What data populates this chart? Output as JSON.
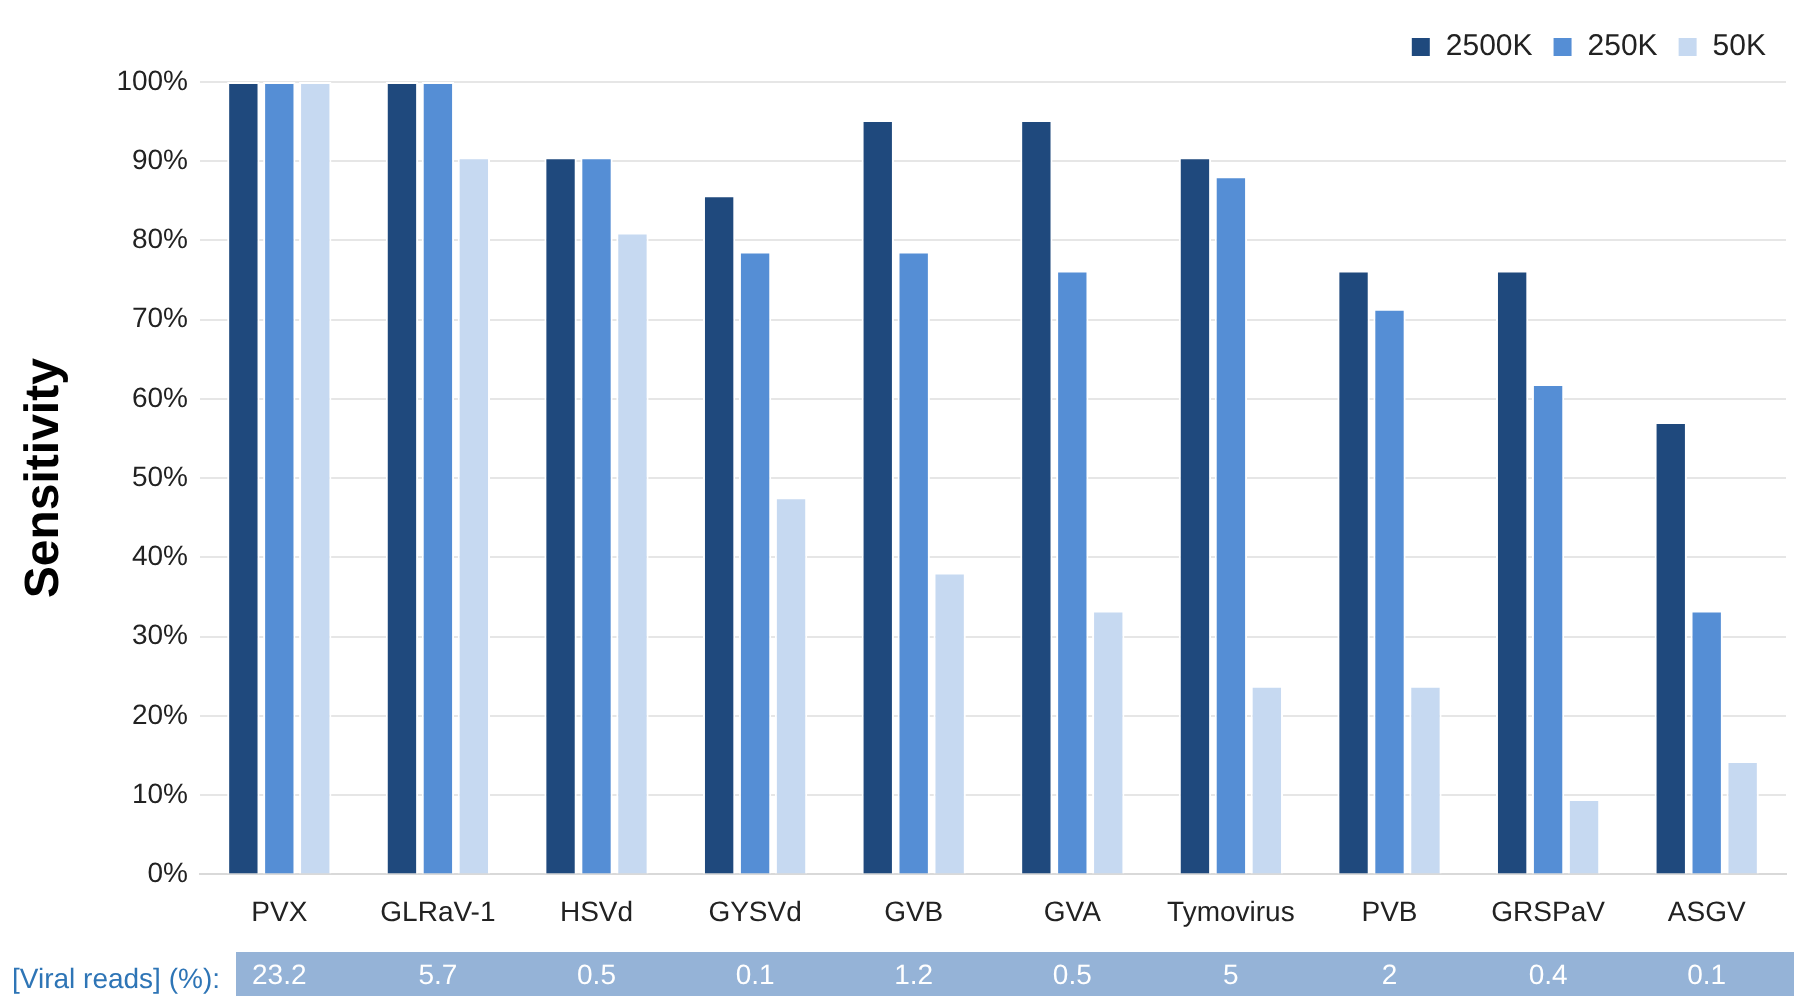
{
  "chart_data": {
    "type": "bar",
    "ylabel": "Sensitivity",
    "categories": [
      "PVX",
      "GLRaV-1",
      "HSVd",
      "GYSVd",
      "GVB",
      "GVA",
      "Tymovirus",
      "PVB",
      "GRSPaV",
      "ASGV"
    ],
    "series": [
      {
        "name": "2500K",
        "color": "#1f497d",
        "values": [
          100,
          100,
          90.5,
          85.7,
          95.2,
          95.2,
          90.5,
          76.2,
          76.2,
          57.1
        ]
      },
      {
        "name": "250K",
        "color": "#558ed5",
        "values": [
          100,
          100,
          90.5,
          78.6,
          78.6,
          76.2,
          88.1,
          71.4,
          61.9,
          33.3
        ]
      },
      {
        "name": "50K",
        "color": "#c6d9f1",
        "values": [
          100,
          90.5,
          81,
          47.6,
          38.1,
          33.3,
          23.8,
          23.8,
          9.5,
          14.3
        ]
      }
    ],
    "ylim": [
      0,
      100
    ],
    "yticks": [
      {
        "value": 0,
        "label": "0%"
      },
      {
        "value": 10,
        "label": "10%"
      },
      {
        "value": 20,
        "label": "20%"
      },
      {
        "value": 30,
        "label": "30%"
      },
      {
        "value": 40,
        "label": "40%"
      },
      {
        "value": 50,
        "label": "50%"
      },
      {
        "value": 60,
        "label": "60%"
      },
      {
        "value": 70,
        "label": "70%"
      },
      {
        "value": 80,
        "label": "80%"
      },
      {
        "value": 90,
        "label": "90%"
      },
      {
        "value": 100,
        "label": "100%"
      }
    ],
    "grid": "y",
    "legend": "top right",
    "annotations": [
      "[Viral reads] (%):",
      "23.2",
      "5.7",
      "0.5",
      "0.1",
      "1.2",
      "0.5",
      "5",
      "2",
      "0.4",
      "0.1"
    ]
  }
}
